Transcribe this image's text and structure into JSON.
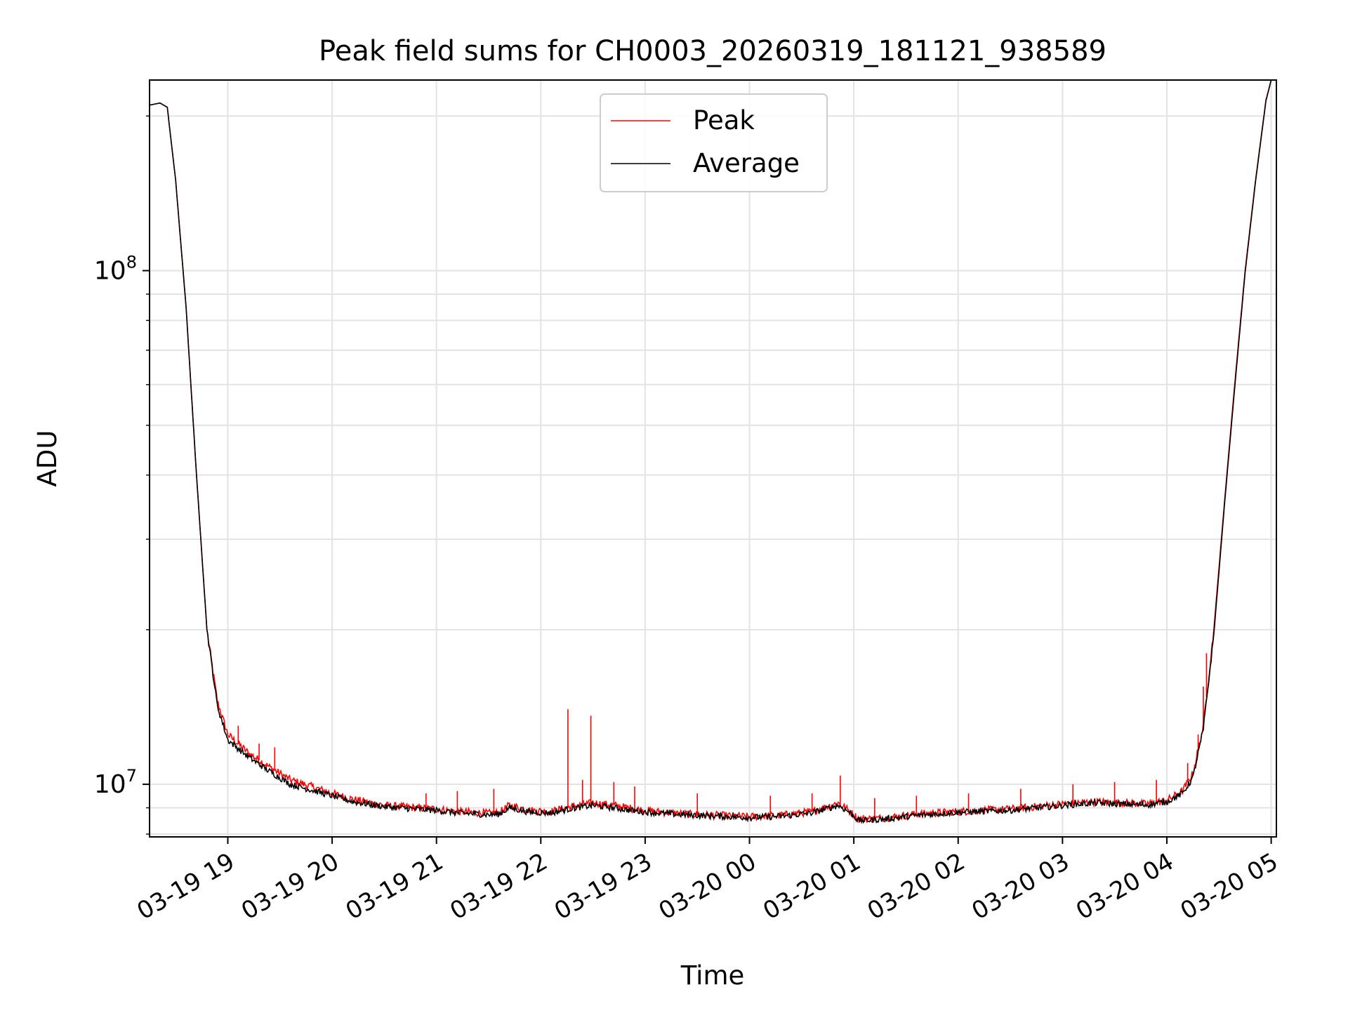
{
  "chart_data": {
    "type": "line",
    "title": "Peak field sums for CH0003_20260319_181121_938589",
    "xlabel": "Time",
    "ylabel": "ADU",
    "yscale": "log",
    "grid": true,
    "legend_placement": "top-center",
    "xlim_hours": [
      18.25,
      29.05
    ],
    "ylim": [
      7900000,
      235000000
    ],
    "x_ticks": [
      {
        "hour": 19,
        "label": "03-19 19"
      },
      {
        "hour": 20,
        "label": "03-19 20"
      },
      {
        "hour": 21,
        "label": "03-19 21"
      },
      {
        "hour": 22,
        "label": "03-19 22"
      },
      {
        "hour": 23,
        "label": "03-19 23"
      },
      {
        "hour": 24,
        "label": "03-20 00"
      },
      {
        "hour": 25,
        "label": "03-20 01"
      },
      {
        "hour": 26,
        "label": "03-20 02"
      },
      {
        "hour": 27,
        "label": "03-20 03"
      },
      {
        "hour": 28,
        "label": "03-20 04"
      },
      {
        "hour": 29,
        "label": "03-20 05"
      }
    ],
    "y_major_ticks": [
      {
        "value": 10000000,
        "base": "10",
        "exp": "7"
      },
      {
        "value": 100000000,
        "base": "10",
        "exp": "8"
      }
    ],
    "x_unit_note": "x values are hours since 2026-03-19 00:00",
    "series": [
      {
        "name": "Peak",
        "color": "#ff0000",
        "points": [
          [
            18.25,
            210000000
          ],
          [
            18.35,
            212000000
          ],
          [
            18.42,
            208000000
          ],
          [
            18.5,
            150000000
          ],
          [
            18.6,
            85000000
          ],
          [
            18.7,
            40000000
          ],
          [
            18.8,
            20000000
          ],
          [
            18.9,
            14500000
          ],
          [
            19.0,
            12500000
          ],
          [
            19.2,
            11500000
          ],
          [
            19.4,
            10800000
          ],
          [
            19.6,
            10200000
          ],
          [
            19.8,
            9900000
          ],
          [
            20.0,
            9600000
          ],
          [
            20.2,
            9350000
          ],
          [
            20.5,
            9100000
          ],
          [
            20.8,
            9000000
          ],
          [
            21.0,
            8950000
          ],
          [
            21.2,
            8850000
          ],
          [
            21.5,
            8780000
          ],
          [
            21.6,
            8800000
          ],
          [
            21.7,
            9100000
          ],
          [
            21.9,
            8900000
          ],
          [
            22.1,
            8850000
          ],
          [
            22.3,
            9050000
          ],
          [
            22.5,
            9200000
          ],
          [
            22.7,
            9100000
          ],
          [
            22.9,
            8950000
          ],
          [
            23.1,
            8850000
          ],
          [
            23.4,
            8750000
          ],
          [
            23.7,
            8700000
          ],
          [
            24.0,
            8650000
          ],
          [
            24.3,
            8700000
          ],
          [
            24.6,
            8850000
          ],
          [
            24.85,
            9200000
          ],
          [
            24.95,
            8900000
          ],
          [
            25.05,
            8550000
          ],
          [
            25.3,
            8600000
          ],
          [
            25.6,
            8750000
          ],
          [
            26.0,
            8850000
          ],
          [
            26.5,
            8950000
          ],
          [
            27.0,
            9150000
          ],
          [
            27.3,
            9250000
          ],
          [
            27.6,
            9200000
          ],
          [
            27.8,
            9150000
          ],
          [
            28.0,
            9300000
          ],
          [
            28.15,
            9700000
          ],
          [
            28.25,
            10500000
          ],
          [
            28.35,
            13000000
          ],
          [
            28.45,
            20000000
          ],
          [
            28.55,
            35000000
          ],
          [
            28.65,
            60000000
          ],
          [
            28.75,
            100000000
          ],
          [
            28.85,
            150000000
          ],
          [
            28.95,
            215000000
          ],
          [
            29.0,
            235000000
          ]
        ],
        "spikes": [
          [
            22.26,
            14000000
          ],
          [
            22.48,
            13600000
          ],
          [
            22.4,
            10200000
          ],
          [
            22.7,
            10100000
          ],
          [
            22.9,
            9900000
          ],
          [
            21.55,
            9800000
          ],
          [
            21.2,
            9700000
          ],
          [
            20.9,
            9600000
          ],
          [
            23.5,
            9600000
          ],
          [
            24.2,
            9500000
          ],
          [
            24.6,
            9600000
          ],
          [
            24.87,
            10400000
          ],
          [
            25.2,
            9400000
          ],
          [
            25.6,
            9500000
          ],
          [
            26.1,
            9600000
          ],
          [
            26.6,
            9800000
          ],
          [
            27.1,
            10000000
          ],
          [
            27.5,
            10100000
          ],
          [
            27.9,
            10200000
          ],
          [
            28.2,
            11000000
          ],
          [
            28.3,
            12500000
          ],
          [
            28.35,
            15500000
          ],
          [
            28.38,
            18000000
          ],
          [
            19.1,
            13000000
          ],
          [
            19.3,
            12000000
          ],
          [
            19.45,
            11800000
          ]
        ]
      },
      {
        "name": "Average",
        "color": "#000000",
        "points": [
          [
            18.25,
            210000000
          ],
          [
            18.35,
            212000000
          ],
          [
            18.42,
            208000000
          ],
          [
            18.5,
            150000000
          ],
          [
            18.6,
            85000000
          ],
          [
            18.7,
            40000000
          ],
          [
            18.8,
            20000000
          ],
          [
            18.9,
            14200000
          ],
          [
            19.0,
            12200000
          ],
          [
            19.2,
            11300000
          ],
          [
            19.4,
            10600000
          ],
          [
            19.6,
            10000000
          ],
          [
            19.8,
            9750000
          ],
          [
            20.0,
            9500000
          ],
          [
            20.2,
            9250000
          ],
          [
            20.5,
            9050000
          ],
          [
            20.8,
            8950000
          ],
          [
            21.0,
            8900000
          ],
          [
            21.2,
            8800000
          ],
          [
            21.5,
            8730000
          ],
          [
            21.6,
            8750000
          ],
          [
            21.7,
            9000000
          ],
          [
            21.9,
            8820000
          ],
          [
            22.1,
            8800000
          ],
          [
            22.3,
            8980000
          ],
          [
            22.5,
            9100000
          ],
          [
            22.7,
            9000000
          ],
          [
            22.9,
            8880000
          ],
          [
            23.1,
            8800000
          ],
          [
            23.4,
            8720000
          ],
          [
            23.7,
            8670000
          ],
          [
            24.0,
            8620000
          ],
          [
            24.3,
            8660000
          ],
          [
            24.6,
            8800000
          ],
          [
            24.85,
            9100000
          ],
          [
            24.95,
            8850000
          ],
          [
            25.05,
            8500000
          ],
          [
            25.3,
            8560000
          ],
          [
            25.6,
            8700000
          ],
          [
            26.0,
            8820000
          ],
          [
            26.5,
            8900000
          ],
          [
            27.0,
            9100000
          ],
          [
            27.3,
            9200000
          ],
          [
            27.6,
            9150000
          ],
          [
            27.8,
            9120000
          ],
          [
            28.0,
            9250000
          ],
          [
            28.15,
            9600000
          ],
          [
            28.25,
            10300000
          ],
          [
            28.35,
            12800000
          ],
          [
            28.45,
            19500000
          ],
          [
            28.55,
            34500000
          ],
          [
            28.65,
            59000000
          ],
          [
            28.75,
            99000000
          ],
          [
            28.85,
            149000000
          ],
          [
            28.95,
            214000000
          ],
          [
            29.0,
            235000000
          ]
        ]
      }
    ]
  }
}
